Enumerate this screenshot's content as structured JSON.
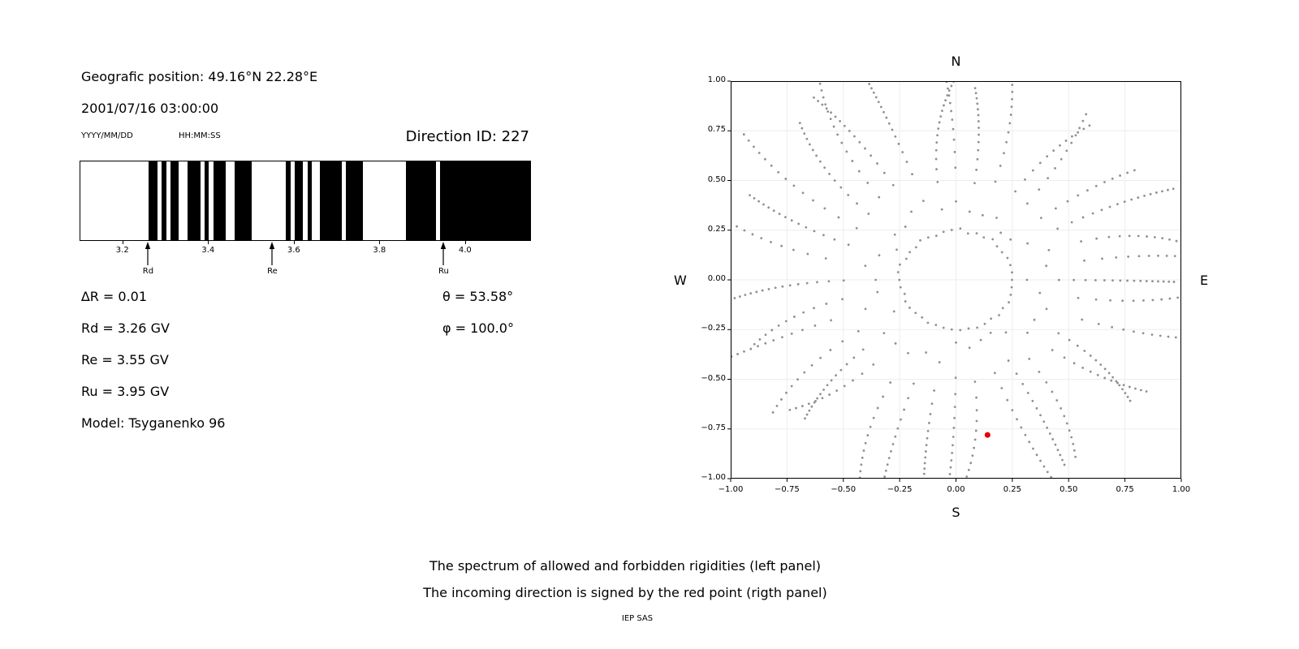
{
  "info": {
    "geo_position": "Geografic position: 49.16°N 22.28°E",
    "datetime": "2001/07/16 03:00:00",
    "date_format_label": "YYYY/MM/DD",
    "time_format_label": "HH:MM:SS",
    "direction_id_label": "Direction ID: 227",
    "delta_r_label": "∆R = 0.01",
    "rd_label": "Rd = 3.26 GV",
    "re_label": "Re = 3.55 GV",
    "ru_label": "Ru = 3.95 GV",
    "model_label": "Model: Tsyganenko 96",
    "theta_label": "θ = 53.58°",
    "phi_label": "φ = 100.0°"
  },
  "caption": {
    "line1": "The spectrum of allowed and forbidden rigidities (left panel)",
    "line2": "The incoming direction is signed by the red point (rigth panel)",
    "credit": "IEP SAS"
  },
  "chart_data": [
    {
      "type": "bar",
      "name": "rigidity-spectrum-barcode",
      "description": "Allowed (black) and forbidden (white) rigidity bands, GV",
      "xlim": [
        3.1,
        4.15
      ],
      "xticks": [
        3.2,
        3.4,
        3.6,
        3.8,
        4.0
      ],
      "delta_r_gv": 0.01,
      "allowed_color": "#000000",
      "forbidden_color": "#ffffff",
      "allowed_bands_gv": [
        [
          3.26,
          3.28
        ],
        [
          3.29,
          3.3
        ],
        [
          3.31,
          3.33
        ],
        [
          3.35,
          3.38
        ],
        [
          3.39,
          3.4
        ],
        [
          3.41,
          3.44
        ],
        [
          3.46,
          3.5
        ],
        [
          3.58,
          3.59
        ],
        [
          3.6,
          3.62
        ],
        [
          3.63,
          3.64
        ],
        [
          3.66,
          3.71
        ],
        [
          3.72,
          3.76
        ],
        [
          3.86,
          3.93
        ],
        [
          3.94,
          4.15
        ]
      ],
      "cutoff_arrows": [
        {
          "label": "Rd",
          "value_gv": 3.26
        },
        {
          "label": "Re",
          "value_gv": 3.55
        },
        {
          "label": "Ru",
          "value_gv": 3.95
        }
      ]
    },
    {
      "type": "scatter",
      "name": "incoming-direction-map",
      "xlim": [
        -1,
        1
      ],
      "ylim": [
        -1,
        1
      ],
      "xticks": [
        -1,
        -0.75,
        -0.5,
        -0.25,
        0,
        0.25,
        0.5,
        0.75,
        1
      ],
      "yticks": [
        -1,
        -0.75,
        -0.5,
        -0.25,
        0,
        0.25,
        0.5,
        0.75,
        1
      ],
      "tick_decimals": 2,
      "compass": {
        "north": "N",
        "south": "S",
        "east": "E",
        "west": "W"
      },
      "grid": true,
      "grid_color": "#ededed",
      "dot_color": "#909090",
      "dot_radius_px": 1.4,
      "red_point": {
        "x": 0.14,
        "y": -0.78,
        "color": "#e60000",
        "radius_px": 3.5,
        "meaning": "incoming direction"
      },
      "pattern": {
        "seed": 20010716,
        "ring": {
          "radius": 0.25,
          "count": 42,
          "jitter": 0.012
        },
        "spokes": {
          "count": 36,
          "start_deg": 0,
          "step_deg": 10,
          "r_inner_min": 0.3,
          "r_inner_max": 0.44,
          "r_outer_min": 0.95,
          "r_outer_max": 1.2,
          "points_min": 12,
          "points_max": 17,
          "outer_cluster_exp": 0.55,
          "max_drift_deg": 10
        }
      }
    }
  ]
}
